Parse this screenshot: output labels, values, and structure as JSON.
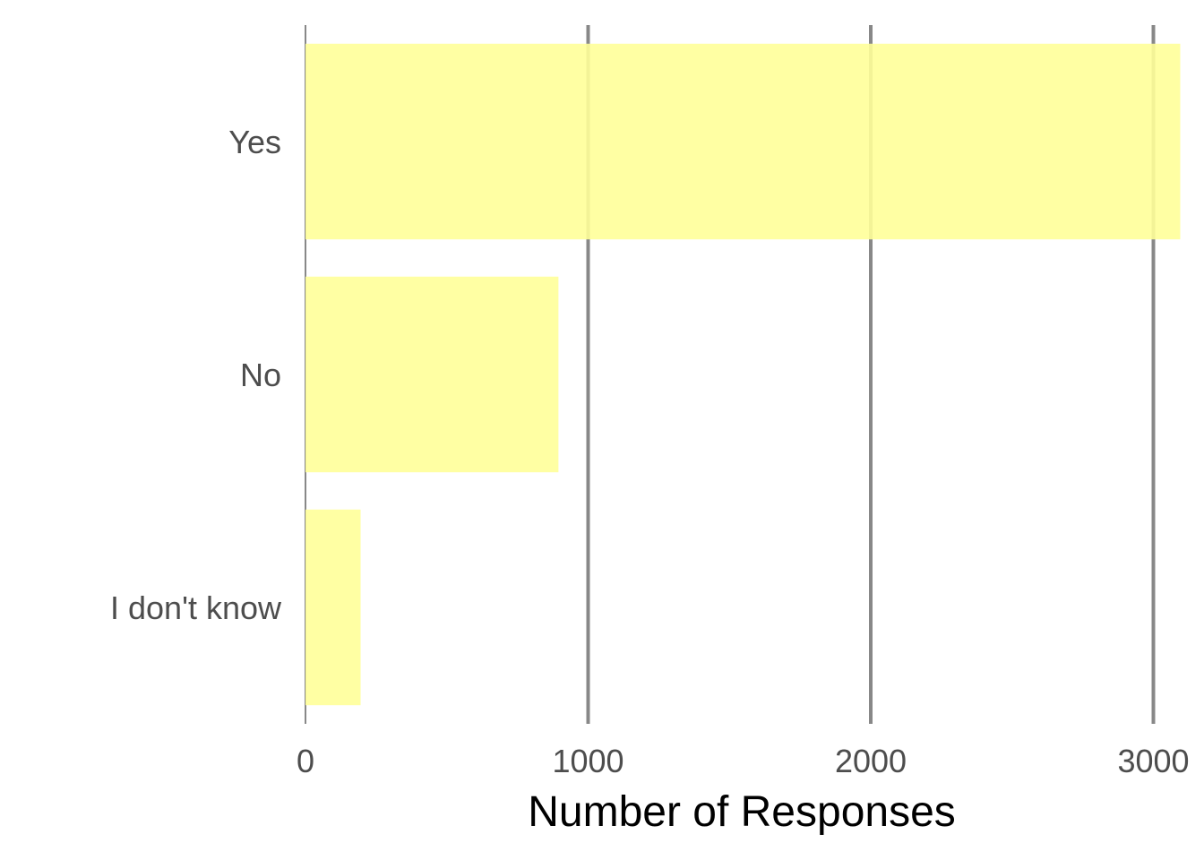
{
  "chart_data": {
    "type": "bar",
    "orientation": "horizontal",
    "categories": [
      "Yes",
      "No",
      "I don't know"
    ],
    "values": [
      3095,
      895,
      195
    ],
    "xlabel": "Number of Responses",
    "ylabel": "",
    "xlim": [
      0,
      3100
    ],
    "xticks": [
      0,
      1000,
      2000,
      3000
    ],
    "grid": "vertical major",
    "legend": "none",
    "bar_color": "#ffff99",
    "grid_color": "#888888"
  }
}
